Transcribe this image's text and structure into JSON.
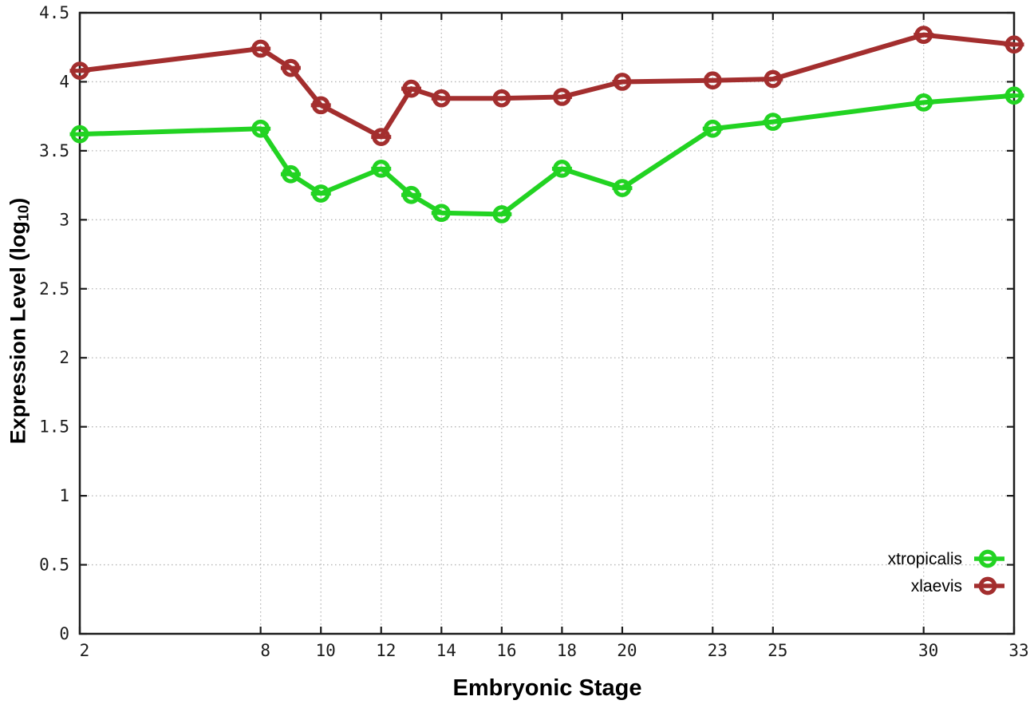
{
  "chart_data": {
    "type": "line",
    "title": "",
    "xlabel": "Embryonic Stage",
    "ylabel": "Expression Level (log10)",
    "ylabel_parts": {
      "prefix": "Expression Level (log",
      "sub": "10",
      "suffix": ")"
    },
    "x": [
      2,
      8,
      9,
      10,
      12,
      13,
      14,
      16,
      18,
      20,
      23,
      25,
      30,
      33
    ],
    "xlim": [
      2,
      33
    ],
    "ylim": [
      0,
      4.5
    ],
    "xticks": {
      "values": [
        2,
        8,
        10,
        12,
        14,
        16,
        18,
        20,
        23,
        25,
        30,
        33
      ],
      "labels": [
        "2",
        "8",
        "10",
        "12",
        "14",
        "16",
        "18",
        "20",
        "23",
        "25",
        "30",
        "33"
      ]
    },
    "yticks": {
      "values": [
        0,
        0.5,
        1,
        1.5,
        2,
        2.5,
        3,
        3.5,
        4,
        4.5
      ],
      "labels": [
        "0",
        "0.5",
        "1",
        "1.5",
        "2",
        "2.5",
        "3",
        "3.5",
        "4",
        "4.5"
      ]
    },
    "grid": true,
    "marker": "open-circle-with-errorbar-cap",
    "legend_position": "inside-right-lower",
    "series": [
      {
        "name": "xtropicalis",
        "color": "#22d322",
        "values": [
          3.62,
          3.66,
          3.33,
          3.19,
          3.37,
          3.18,
          3.05,
          3.04,
          3.37,
          3.23,
          3.66,
          3.71,
          3.85,
          3.9
        ]
      },
      {
        "name": "xlaevis",
        "color": "#a32e2e",
        "values": [
          4.08,
          4.24,
          4.1,
          3.83,
          3.6,
          3.95,
          3.88,
          3.88,
          3.89,
          4.0,
          4.01,
          4.02,
          4.34,
          4.27
        ]
      }
    ]
  }
}
